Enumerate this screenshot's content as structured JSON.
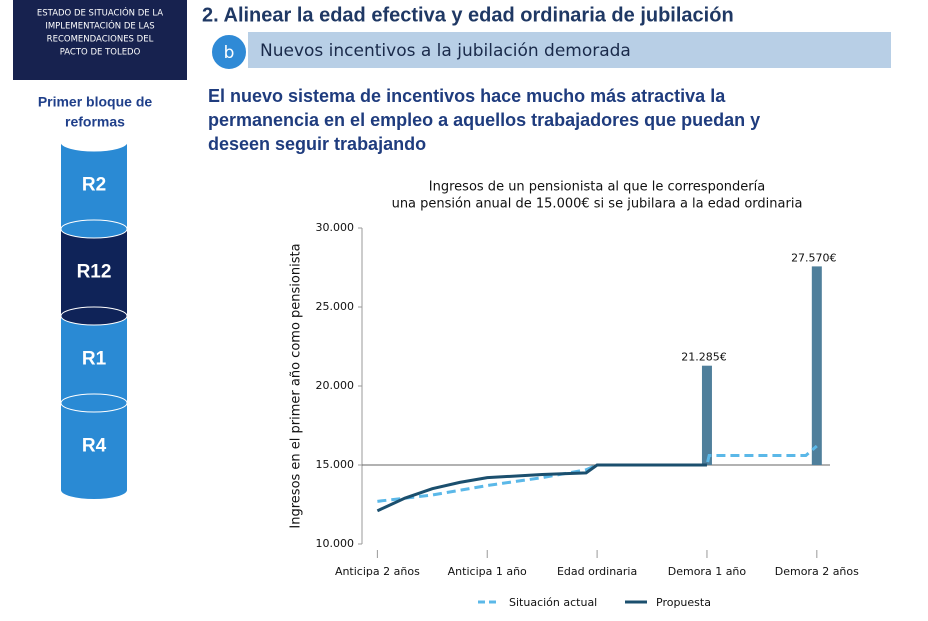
{
  "sidebar": {
    "header_lines": [
      "ESTADO DE SITUACIÓN DE LA",
      "IMPLEMENTACIÓN DE LAS",
      "RECOMENDACIONES DEL",
      "PACTO DE TOLEDO"
    ],
    "block_title_lines": [
      "Primer bloque de",
      "reformas"
    ],
    "stack": [
      "R2",
      "R12",
      "R1",
      "R4"
    ]
  },
  "header": {
    "title": "2. Alinear la edad efectiva y edad ordinaria de jubilación",
    "badge": "b",
    "subtitle": "Nuevos incentivos a la jubilación demorada"
  },
  "body_lines": [
    "El nuevo sistema de incentivos hace mucho más atractiva la",
    "permanencia en el empleo a aquellos trabajadores que puedan y",
    "deseen seguir trabajando"
  ],
  "chart_data": {
    "type": "line",
    "title_lines": [
      "Ingresos de un pensionista al que le correspondería",
      "una pensión anual de 15.000€ si se jubilara a la edad ordinaria"
    ],
    "ylabel": "Ingresos en el primer año como pensionista",
    "xlim": [
      -2.14,
      2.12
    ],
    "xticks": [
      {
        "value": -2,
        "label": "Anticipa 2 años"
      },
      {
        "value": -1,
        "label": "Anticipa 1 año"
      },
      {
        "value": 0,
        "label": "Edad ordinaria"
      },
      {
        "value": 1,
        "label": "Demora 1 año"
      },
      {
        "value": 2,
        "label": "Demora 2 años"
      }
    ],
    "ylim": [
      10000,
      30000
    ],
    "yticks": [
      {
        "value": 10000,
        "label": "10.000"
      },
      {
        "value": 15000,
        "label": "15.000"
      },
      {
        "value": 20000,
        "label": "20.000"
      },
      {
        "value": 25000,
        "label": "25.000"
      },
      {
        "value": 30000,
        "label": "30.000"
      }
    ],
    "reference_line": 15000,
    "series": [
      {
        "name": "Situación actual",
        "color": "#5bb8e8",
        "dashed": true,
        "x": [
          -2,
          -1.5,
          -1,
          -0.5,
          -0.1,
          0,
          1,
          1.02,
          1.9,
          2
        ],
        "values": [
          12700,
          13100,
          13700,
          14200,
          14700,
          15000,
          15000,
          15600,
          15600,
          16200
        ]
      },
      {
        "name": "Propuesta",
        "color": "#1b4f6e",
        "dashed": false,
        "x": [
          -2,
          -1.75,
          -1.5,
          -1.25,
          -1,
          -0.5,
          -0.1,
          0,
          1
        ],
        "values": [
          12100,
          12900,
          13500,
          13900,
          14200,
          14400,
          14500,
          15000,
          15000
        ]
      }
    ],
    "bars": {
      "color": "#4f7f9b",
      "x": [
        1,
        2
      ],
      "values": [
        21285,
        27570
      ],
      "value_labels": [
        "21.285€",
        "27.570€"
      ]
    }
  }
}
